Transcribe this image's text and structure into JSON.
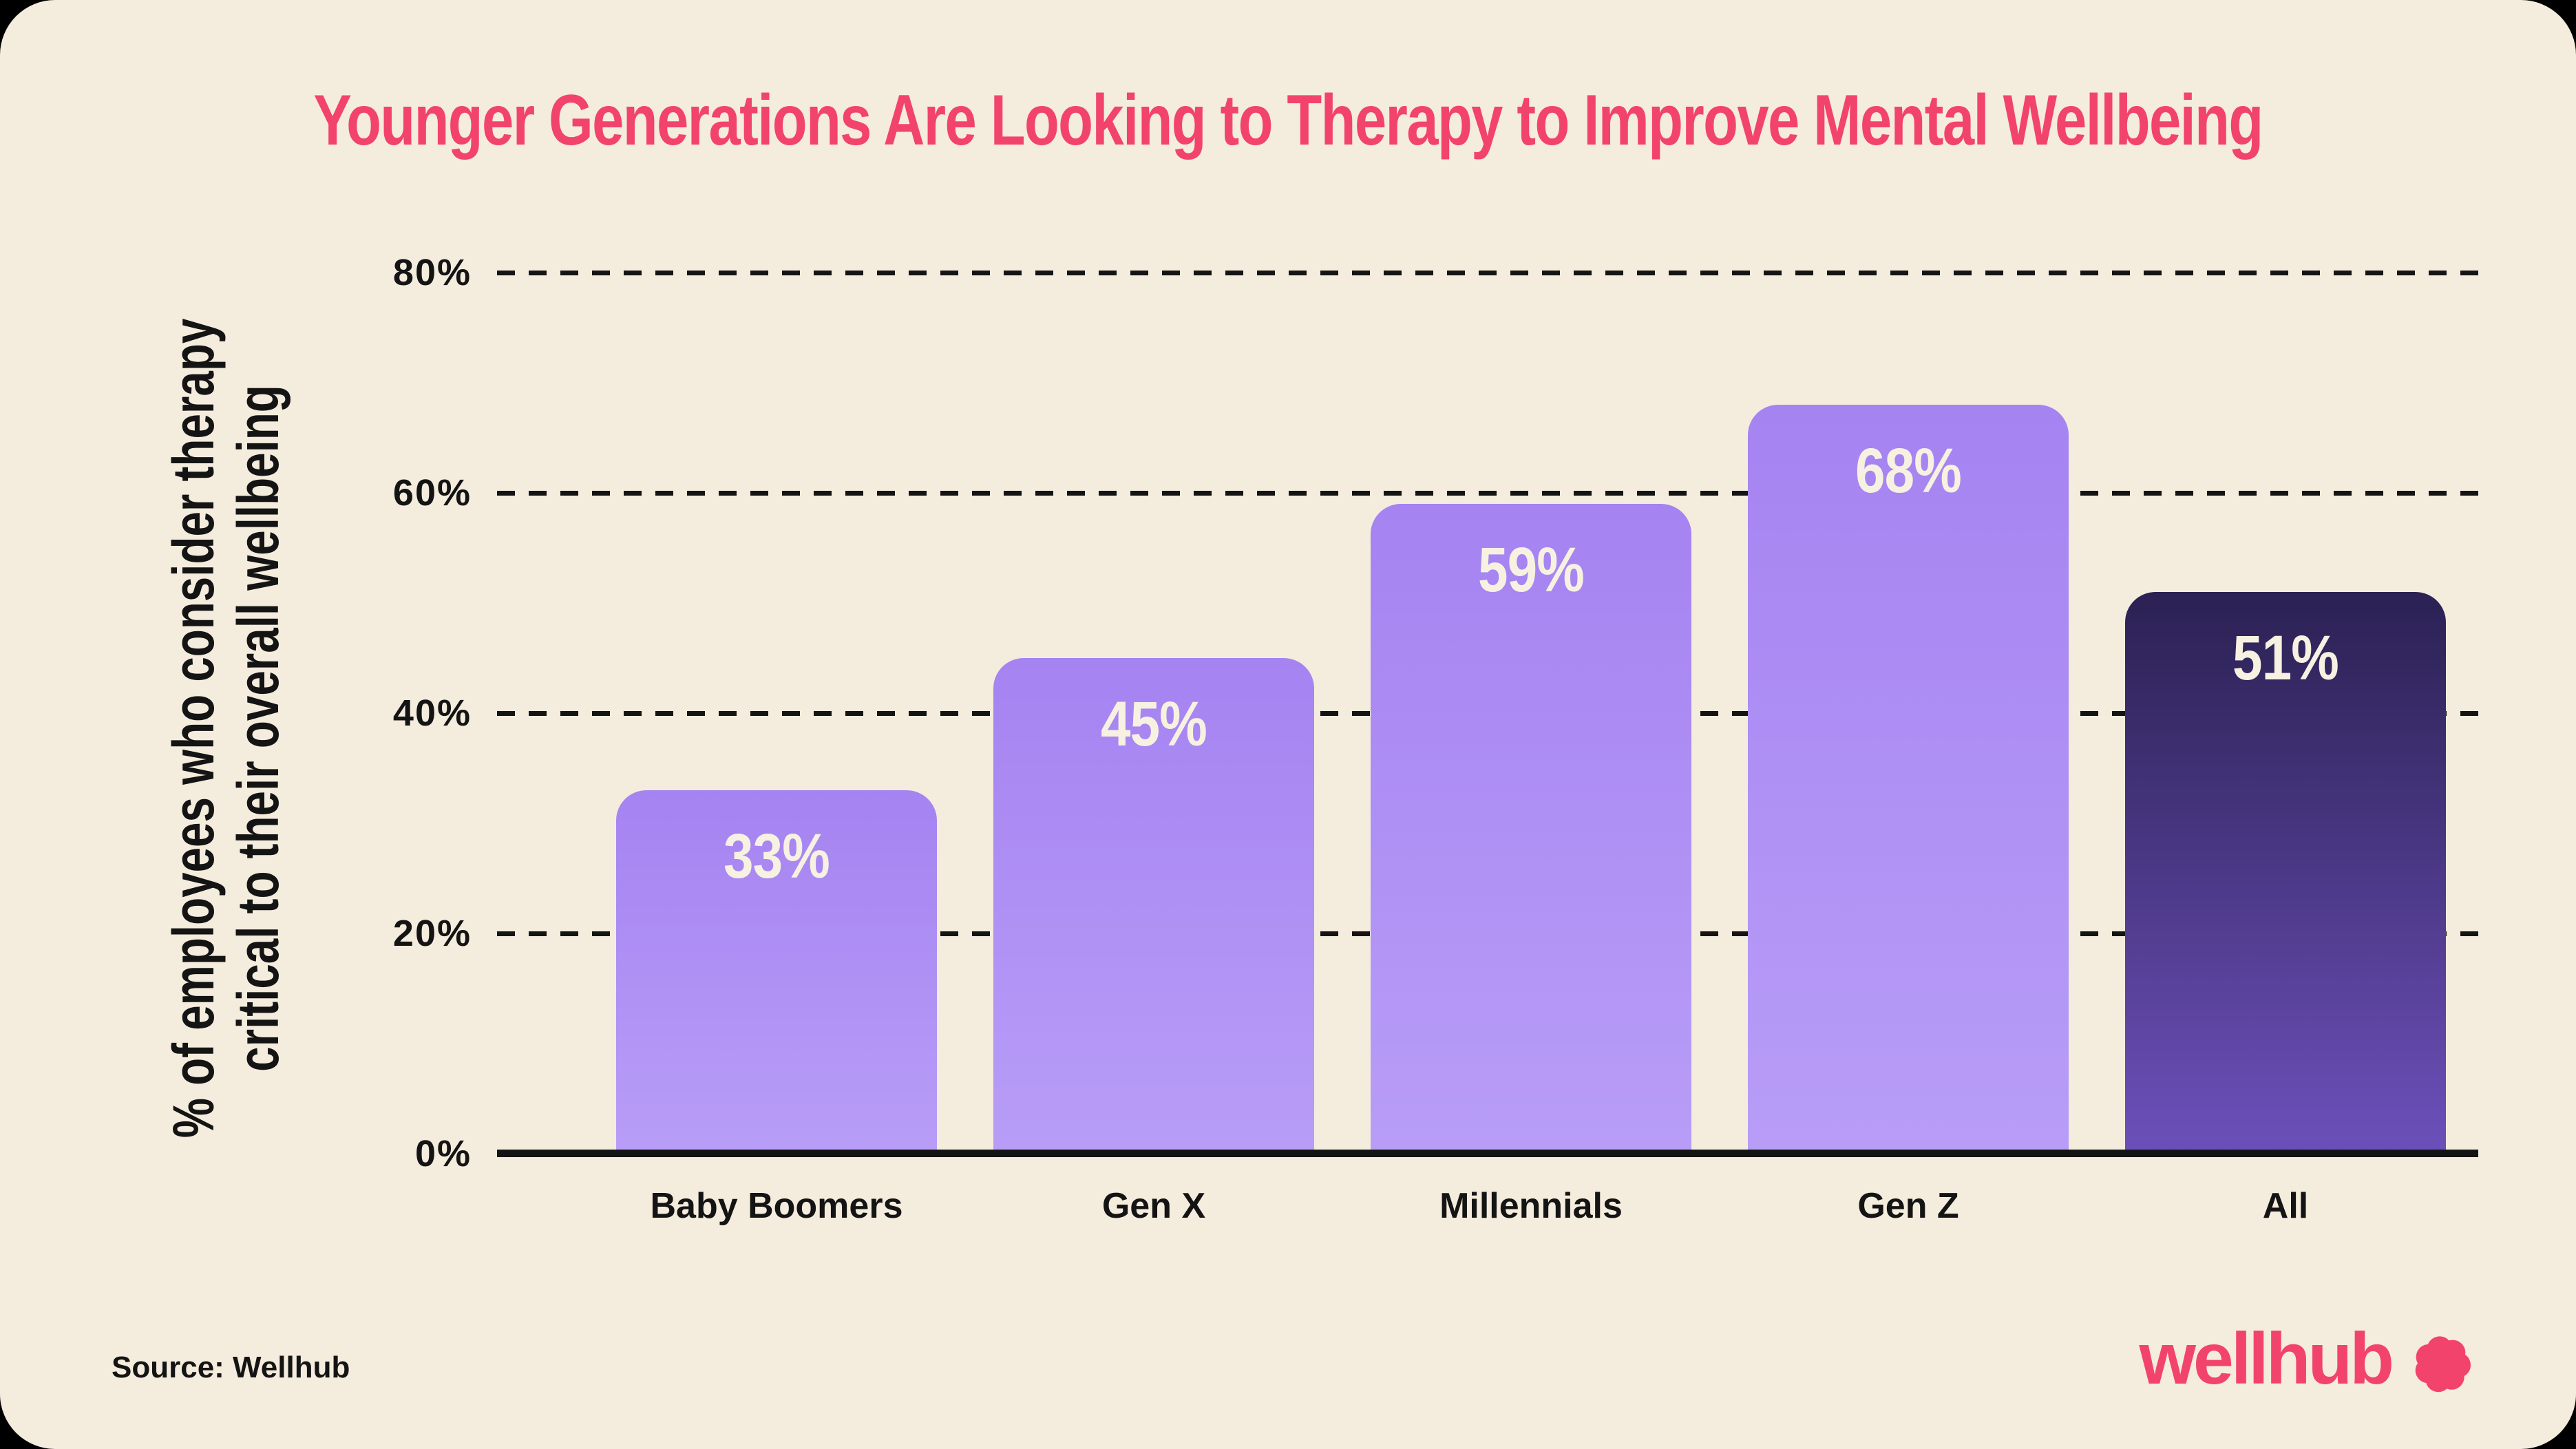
{
  "chart": {
    "title": "Younger Generations Are Looking to Therapy to Improve Mental Wellbeing",
    "ylabel_line1": "% of employees who consider therapy",
    "ylabel_line2": "critical to their overall wellbeing"
  },
  "chart_data": {
    "type": "bar",
    "title": "Younger Generations Are Looking to Therapy to Improve Mental Wellbeing",
    "categories": [
      "Baby Boomers",
      "Gen X",
      "Millennials",
      "Gen Z",
      "All"
    ],
    "values": [
      33,
      45,
      59,
      68,
      51
    ],
    "value_labels": [
      "33%",
      "45%",
      "59%",
      "68%",
      "51%"
    ],
    "xlabel": "",
    "ylabel": "% of employees who consider therapy critical to their overall wellbeing",
    "ylim": [
      0,
      80
    ],
    "yticks": [
      0,
      20,
      40,
      60,
      80
    ],
    "ytick_labels": [
      "0%",
      "20%",
      "40%",
      "60%",
      "80%"
    ],
    "grid": "horizontal-dashed",
    "legend": false,
    "bar_variants": [
      "light",
      "light",
      "light",
      "light",
      "dark"
    ],
    "colors": {
      "background": "#F4ECDD",
      "title": "#F2436D",
      "axis_text": "#141414",
      "bar_light_top": "#A583F1",
      "bar_light_bottom": "#B89DF7",
      "bar_dark_top": "#2B2153",
      "bar_dark_bottom": "#6C50BA",
      "value_label": "#F7F1E2"
    }
  },
  "footer": {
    "source": "Source: Wellhub",
    "logo_text": "wellhub"
  }
}
